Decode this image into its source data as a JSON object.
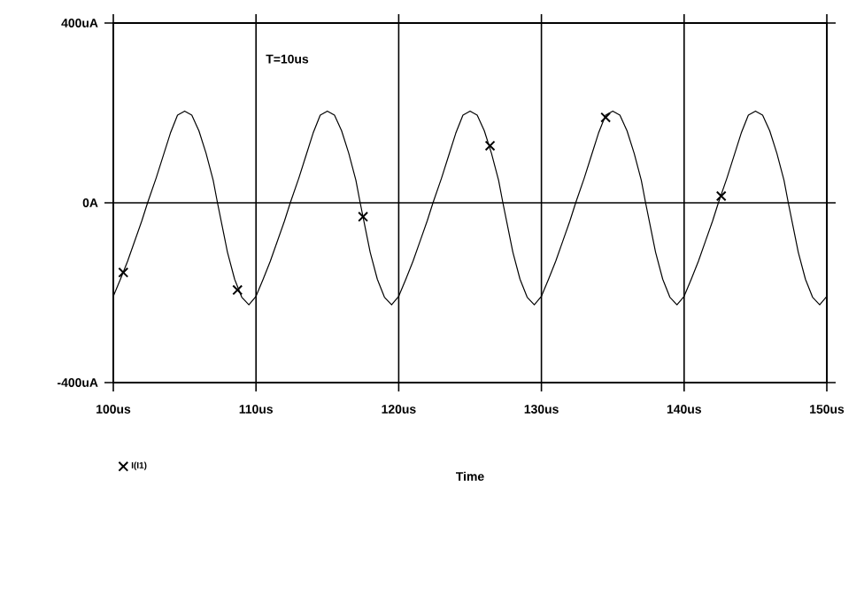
{
  "chart_data": {
    "type": "line",
    "xlabel": "Time",
    "annotations": [
      "T=10us"
    ],
    "xlim": [
      100,
      150
    ],
    "xticks": [
      {
        "value": 100,
        "label": "100us"
      },
      {
        "value": 110,
        "label": "110us"
      },
      {
        "value": 120,
        "label": "120us"
      },
      {
        "value": 130,
        "label": "130us"
      },
      {
        "value": 140,
        "label": "140us"
      },
      {
        "value": 150,
        "label": "150us"
      }
    ],
    "ylim": [
      -400,
      400
    ],
    "yticks": [
      {
        "value": -400,
        "label": "-400uA"
      },
      {
        "value": 0,
        "label": "0A"
      },
      {
        "value": 400,
        "label": "400uA"
      }
    ],
    "grid": true,
    "legend": "bottom left",
    "series": [
      {
        "name": "I(I1)",
        "color": "#000000",
        "x": [
          100,
          100.5,
          101,
          101.5,
          102,
          102.4,
          103,
          103.5,
          104,
          104.5,
          105,
          105.5,
          106,
          106.5,
          107,
          107.3,
          108,
          108.5,
          109,
          109.5,
          110,
          110.5,
          111,
          111.5,
          112,
          112.4,
          113,
          113.5,
          114,
          114.5,
          115,
          115.5,
          116,
          116.5,
          117,
          117.3,
          118,
          118.5,
          119,
          119.5,
          120,
          120.5,
          121,
          121.5,
          122,
          122.4,
          123,
          123.5,
          124,
          124.5,
          125,
          125.5,
          126,
          126.5,
          127,
          127.3,
          128,
          128.5,
          129,
          129.5,
          130,
          130.5,
          131,
          131.5,
          132,
          132.4,
          133,
          133.5,
          134,
          134.5,
          135,
          135.5,
          136,
          136.5,
          137,
          137.3,
          138,
          138.5,
          139,
          139.5,
          140,
          140.5,
          141,
          141.5,
          142,
          142.4,
          143,
          143.5,
          144,
          144.5,
          145,
          145.5,
          146,
          146.5,
          147,
          147.3,
          148,
          148.5,
          149,
          149.5,
          150
        ],
        "values": [
          -208,
          -170,
          -130,
          -85,
          -40,
          0,
          55,
          105,
          155,
          195,
          204,
          195,
          160,
          110,
          50,
          0,
          -110,
          -170,
          -210,
          -227,
          -208,
          -170,
          -130,
          -85,
          -40,
          0,
          55,
          105,
          155,
          195,
          204,
          195,
          160,
          110,
          50,
          0,
          -110,
          -170,
          -210,
          -227,
          -208,
          -170,
          -130,
          -85,
          -40,
          0,
          55,
          105,
          155,
          195,
          204,
          195,
          160,
          110,
          50,
          0,
          -110,
          -170,
          -210,
          -227,
          -208,
          -170,
          -130,
          -85,
          -40,
          0,
          55,
          105,
          155,
          195,
          204,
          195,
          160,
          110,
          50,
          0,
          -110,
          -170,
          -210,
          -227,
          -208,
          -170,
          -130,
          -85,
          -40,
          0,
          55,
          105,
          155,
          195,
          204,
          195,
          160,
          110,
          50,
          0,
          -110,
          -170,
          -210,
          -227,
          -208
        ]
      },
      {
        "color": "#000000",
        "type": "scatter",
        "marker": "cross",
        "x": [
          100.7,
          108.7,
          117.5,
          126.4,
          134.5,
          142.6
        ],
        "values": [
          -155,
          -194,
          -31,
          127,
          190,
          15
        ]
      }
    ]
  }
}
